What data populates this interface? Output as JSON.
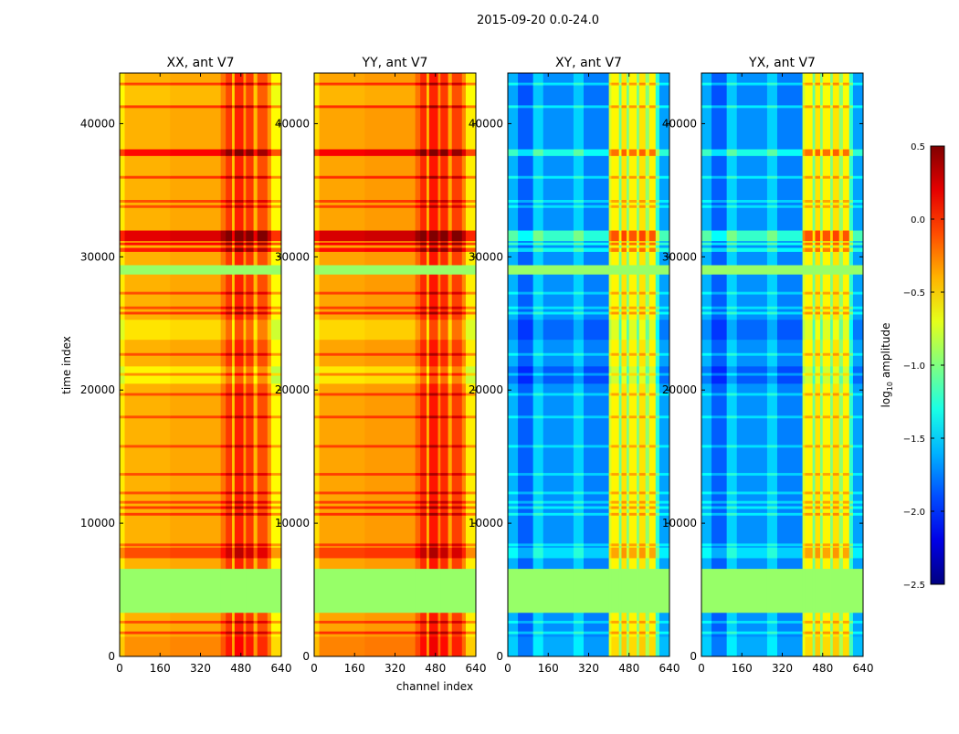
{
  "chart_data": {
    "type": "heatmap",
    "title": "2015-09-20 0.0-24.0",
    "xlabel": "channel index",
    "ylabel": "time index",
    "xlim": [
      0,
      640
    ],
    "ylim": [
      0,
      43800
    ],
    "xticks": [
      "0",
      "160",
      "320",
      "480",
      "640"
    ],
    "xtick_values": [
      0,
      160,
      320,
      480,
      640
    ],
    "yticks": [
      "0",
      "10000",
      "20000",
      "30000",
      "40000"
    ],
    "ytick_values": [
      0,
      10000,
      20000,
      30000,
      40000
    ],
    "colorbar": {
      "label": "log10 amplitude",
      "label_main": "log",
      "label_sub": "10",
      "label_rest": " amplitude",
      "colormap": "jet",
      "range": [
        -2.5,
        0.5
      ],
      "ticks": [
        "0.5",
        "0.0",
        "−0.5",
        "−1.0",
        "−1.5",
        "−2.0",
        "−2.5"
      ],
      "tick_values": [
        0.5,
        0.0,
        -0.5,
        -1.0,
        -1.5,
        -2.0,
        -2.5
      ]
    },
    "flagged_value": -0.93,
    "flagged_time_ranges": [
      [
        3300,
        6600
      ],
      [
        28700,
        29400
      ]
    ],
    "panels": [
      {
        "title": "XX, ant V7",
        "group": "parallel",
        "base": -0.42
      },
      {
        "title": "YY, ant V7",
        "group": "parallel",
        "base": -0.38
      },
      {
        "title": "XY, ant V7",
        "group": "cross",
        "base": -1.75
      },
      {
        "title": "YX, ant V7",
        "group": "cross",
        "base": -1.75
      }
    ],
    "channel_profiles": {
      "parallel": [
        [
          0,
          20,
          -0.15
        ],
        [
          20,
          200,
          0.02
        ],
        [
          200,
          400,
          0.05
        ],
        [
          400,
          420,
          0.2
        ],
        [
          420,
          445,
          0.38
        ],
        [
          445,
          455,
          -0.05
        ],
        [
          455,
          490,
          0.45
        ],
        [
          490,
          500,
          0.1
        ],
        [
          500,
          530,
          0.38
        ],
        [
          530,
          545,
          0.0
        ],
        [
          545,
          585,
          0.32
        ],
        [
          585,
          600,
          0.1
        ],
        [
          600,
          640,
          -0.2
        ]
      ],
      "cross": [
        [
          0,
          40,
          0.15
        ],
        [
          40,
          100,
          -0.1
        ],
        [
          100,
          140,
          0.25
        ],
        [
          140,
          260,
          0.05
        ],
        [
          260,
          300,
          0.25
        ],
        [
          300,
          400,
          0.0
        ],
        [
          400,
          410,
          1.0
        ],
        [
          410,
          440,
          1.15
        ],
        [
          440,
          450,
          0.7
        ],
        [
          450,
          470,
          1.2
        ],
        [
          470,
          480,
          0.75
        ],
        [
          480,
          510,
          1.15
        ],
        [
          510,
          520,
          0.75
        ],
        [
          520,
          545,
          1.2
        ],
        [
          545,
          560,
          0.8
        ],
        [
          560,
          585,
          1.15
        ],
        [
          585,
          600,
          0.5
        ],
        [
          600,
          640,
          0.1
        ]
      ]
    },
    "time_features": [
      [
        0,
        1500,
        0.1
      ],
      [
        1700,
        1900,
        0.35
      ],
      [
        2500,
        2700,
        0.3
      ],
      [
        7400,
        8200,
        0.3
      ],
      [
        8300,
        8500,
        0.3
      ],
      [
        10600,
        10800,
        0.35
      ],
      [
        11100,
        11300,
        0.35
      ],
      [
        11500,
        11700,
        0.3
      ],
      [
        12200,
        12400,
        0.3
      ],
      [
        13600,
        13800,
        0.3
      ],
      [
        15700,
        15900,
        0.3
      ],
      [
        17900,
        18100,
        0.3
      ],
      [
        19600,
        19800,
        0.3
      ],
      [
        20500,
        21800,
        -0.2
      ],
      [
        21100,
        21300,
        0.3
      ],
      [
        22600,
        22800,
        0.3
      ],
      [
        23800,
        25300,
        -0.15
      ],
      [
        25700,
        25900,
        0.35
      ],
      [
        26100,
        26300,
        0.3
      ],
      [
        27200,
        27400,
        0.3
      ],
      [
        30400,
        30700,
        0.45
      ],
      [
        30900,
        31100,
        0.5
      ],
      [
        31200,
        32000,
        0.6
      ],
      [
        33700,
        33900,
        0.3
      ],
      [
        34100,
        34300,
        0.3
      ],
      [
        35900,
        36100,
        0.35
      ],
      [
        37600,
        38100,
        0.5
      ],
      [
        41200,
        41400,
        0.35
      ],
      [
        41400,
        43000,
        -0.05
      ],
      [
        42900,
        43100,
        0.35
      ]
    ]
  }
}
